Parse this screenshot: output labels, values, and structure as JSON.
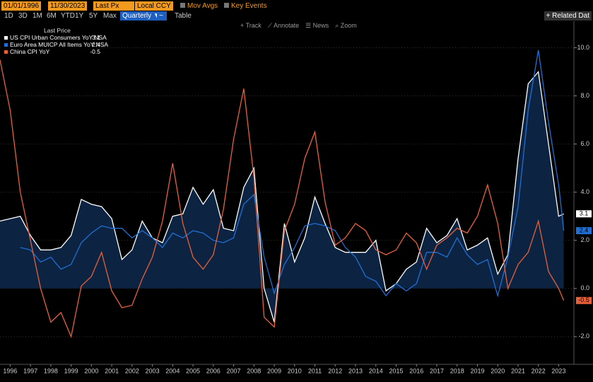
{
  "toolbar": {
    "start_date": "01/01/1996",
    "end_date": "11/30/2023",
    "field": "Last Px",
    "currency": "Local CCY",
    "mov_avgs": "Mov Avgs",
    "key_events": "Key Events",
    "ranges": [
      "1D",
      "3D",
      "1M",
      "6M",
      "YTD",
      "1Y",
      "5Y",
      "Max"
    ],
    "period": "Quarterly ▼",
    "table": "Table",
    "related": "+ Related Dat",
    "chart_tools": [
      "+ Track",
      "⟋ Annotate",
      "☰ News",
      "⌕ Zoom"
    ]
  },
  "chart_data": {
    "type": "line",
    "legend_title": "Last Price",
    "x": [
      1996.0,
      1996.5,
      1997.0,
      1997.5,
      1998.0,
      1998.5,
      1999.0,
      1999.5,
      2000.0,
      2000.5,
      2001.0,
      2001.5,
      2002.0,
      2002.5,
      2003.0,
      2003.5,
      2004.0,
      2004.5,
      2005.0,
      2005.5,
      2006.0,
      2006.5,
      2007.0,
      2007.5,
      2008.0,
      2008.5,
      2009.0,
      2009.5,
      2010.0,
      2010.5,
      2011.0,
      2011.5,
      2012.0,
      2012.5,
      2013.0,
      2013.5,
      2014.0,
      2014.5,
      2015.0,
      2015.5,
      2016.0,
      2016.5,
      2017.0,
      2017.5,
      2018.0,
      2018.5,
      2019.0,
      2019.5,
      2020.0,
      2020.5,
      2021.0,
      2021.5,
      2022.0,
      2022.5,
      2023.0,
      2023.5,
      2023.75
    ],
    "series": [
      {
        "name": "US CPI Urban Consumers YoY NSA",
        "last_price": 3.1,
        "color": "#ffffff",
        "area": true,
        "area_color": "#0d2644",
        "values": [
          2.8,
          2.9,
          3.0,
          2.2,
          1.6,
          1.6,
          1.7,
          2.2,
          3.7,
          3.5,
          3.4,
          2.9,
          1.2,
          1.6,
          2.8,
          2.1,
          1.9,
          3.0,
          3.1,
          4.2,
          3.5,
          4.1,
          2.5,
          2.4,
          4.2,
          5.0,
          0.0,
          -1.4,
          2.7,
          1.1,
          2.1,
          3.8,
          2.7,
          1.7,
          1.5,
          1.5,
          1.5,
          2.0,
          -0.1,
          0.2,
          0.8,
          1.1,
          2.5,
          1.9,
          2.2,
          2.9,
          1.6,
          1.8,
          2.1,
          0.6,
          1.4,
          5.4,
          8.5,
          9.0,
          6.0,
          3.0,
          3.1
        ]
      },
      {
        "name": "Euro Area MUICP All Items YoY NSA",
        "last_price": 2.4,
        "color": "#1f6fd6",
        "values": [
          null,
          null,
          1.7,
          1.6,
          1.1,
          1.3,
          0.8,
          1.0,
          1.9,
          2.3,
          2.6,
          2.5,
          2.5,
          2.1,
          2.4,
          2.1,
          1.7,
          2.3,
          2.1,
          2.4,
          2.3,
          2.0,
          1.9,
          2.1,
          3.5,
          3.9,
          1.3,
          -0.2,
          1.0,
          1.7,
          2.6,
          2.7,
          2.6,
          2.4,
          1.7,
          1.3,
          0.5,
          0.3,
          -0.3,
          0.2,
          -0.1,
          0.2,
          1.5,
          1.5,
          1.3,
          2.1,
          1.4,
          1.0,
          1.2,
          -0.3,
          1.3,
          3.4,
          7.4,
          9.9,
          6.9,
          4.3,
          2.4
        ]
      },
      {
        "name": "China CPI YoY",
        "last_price": -0.5,
        "color": "#e8603a",
        "values": [
          9.5,
          7.4,
          4.0,
          2.0,
          0.0,
          -1.4,
          -1.0,
          -2.0,
          0.1,
          0.5,
          1.5,
          -0.1,
          -0.8,
          -0.7,
          0.4,
          1.3,
          2.8,
          5.2,
          2.7,
          1.3,
          0.8,
          1.4,
          3.3,
          6.2,
          8.3,
          4.6,
          -1.2,
          -1.6,
          2.4,
          3.5,
          5.4,
          6.5,
          3.6,
          1.8,
          2.1,
          2.7,
          2.4,
          1.6,
          1.4,
          1.6,
          2.3,
          1.9,
          0.8,
          1.8,
          2.1,
          2.5,
          2.3,
          3.0,
          4.3,
          2.7,
          0.0,
          1.0,
          1.5,
          2.8,
          0.7,
          0.0,
          -0.5
        ]
      }
    ],
    "xlim": [
      1996,
      2024.25
    ],
    "xticks": [
      {
        "value": 1996.5,
        "label": "1996"
      },
      {
        "value": 1997.5,
        "label": "1997"
      },
      {
        "value": 1998.5,
        "label": "1998"
      },
      {
        "value": 1999.5,
        "label": "1999"
      },
      {
        "value": 2000.5,
        "label": "2000"
      },
      {
        "value": 2001.5,
        "label": "2001"
      },
      {
        "value": 2002.5,
        "label": "2002"
      },
      {
        "value": 2003.5,
        "label": "2003"
      },
      {
        "value": 2004.5,
        "label": "2004"
      },
      {
        "value": 2005.5,
        "label": "2005"
      },
      {
        "value": 2006.5,
        "label": "2006"
      },
      {
        "value": 2007.5,
        "label": "2007"
      },
      {
        "value": 2008.5,
        "label": "2008"
      },
      {
        "value": 2009.5,
        "label": "2009"
      },
      {
        "value": 2010.5,
        "label": "2010"
      },
      {
        "value": 2011.5,
        "label": "2011"
      },
      {
        "value": 2012.5,
        "label": "2012"
      },
      {
        "value": 2013.5,
        "label": "2013"
      },
      {
        "value": 2014.5,
        "label": "2014"
      },
      {
        "value": 2015.5,
        "label": "2015"
      },
      {
        "value": 2016.5,
        "label": "2016"
      },
      {
        "value": 2017.5,
        "label": "2017"
      },
      {
        "value": 2018.5,
        "label": "2018"
      },
      {
        "value": 2019.5,
        "label": "2019"
      },
      {
        "value": 2020.5,
        "label": "2020"
      },
      {
        "value": 2021.5,
        "label": "2021"
      },
      {
        "value": 2022.5,
        "label": "2022"
      },
      {
        "value": 2023.5,
        "label": "2023"
      }
    ],
    "ylim": [
      -3.15,
      11.1
    ],
    "yticks": [
      {
        "value": -2,
        "label": "-2.0"
      },
      {
        "value": 0,
        "label": "0.0"
      },
      {
        "value": 2,
        "label": "2.0"
      },
      {
        "value": 4,
        "label": "4.0"
      },
      {
        "value": 6,
        "label": "6.0"
      },
      {
        "value": 8,
        "label": "8.0"
      },
      {
        "value": 10,
        "label": "10.0"
      }
    ],
    "grid": true
  }
}
